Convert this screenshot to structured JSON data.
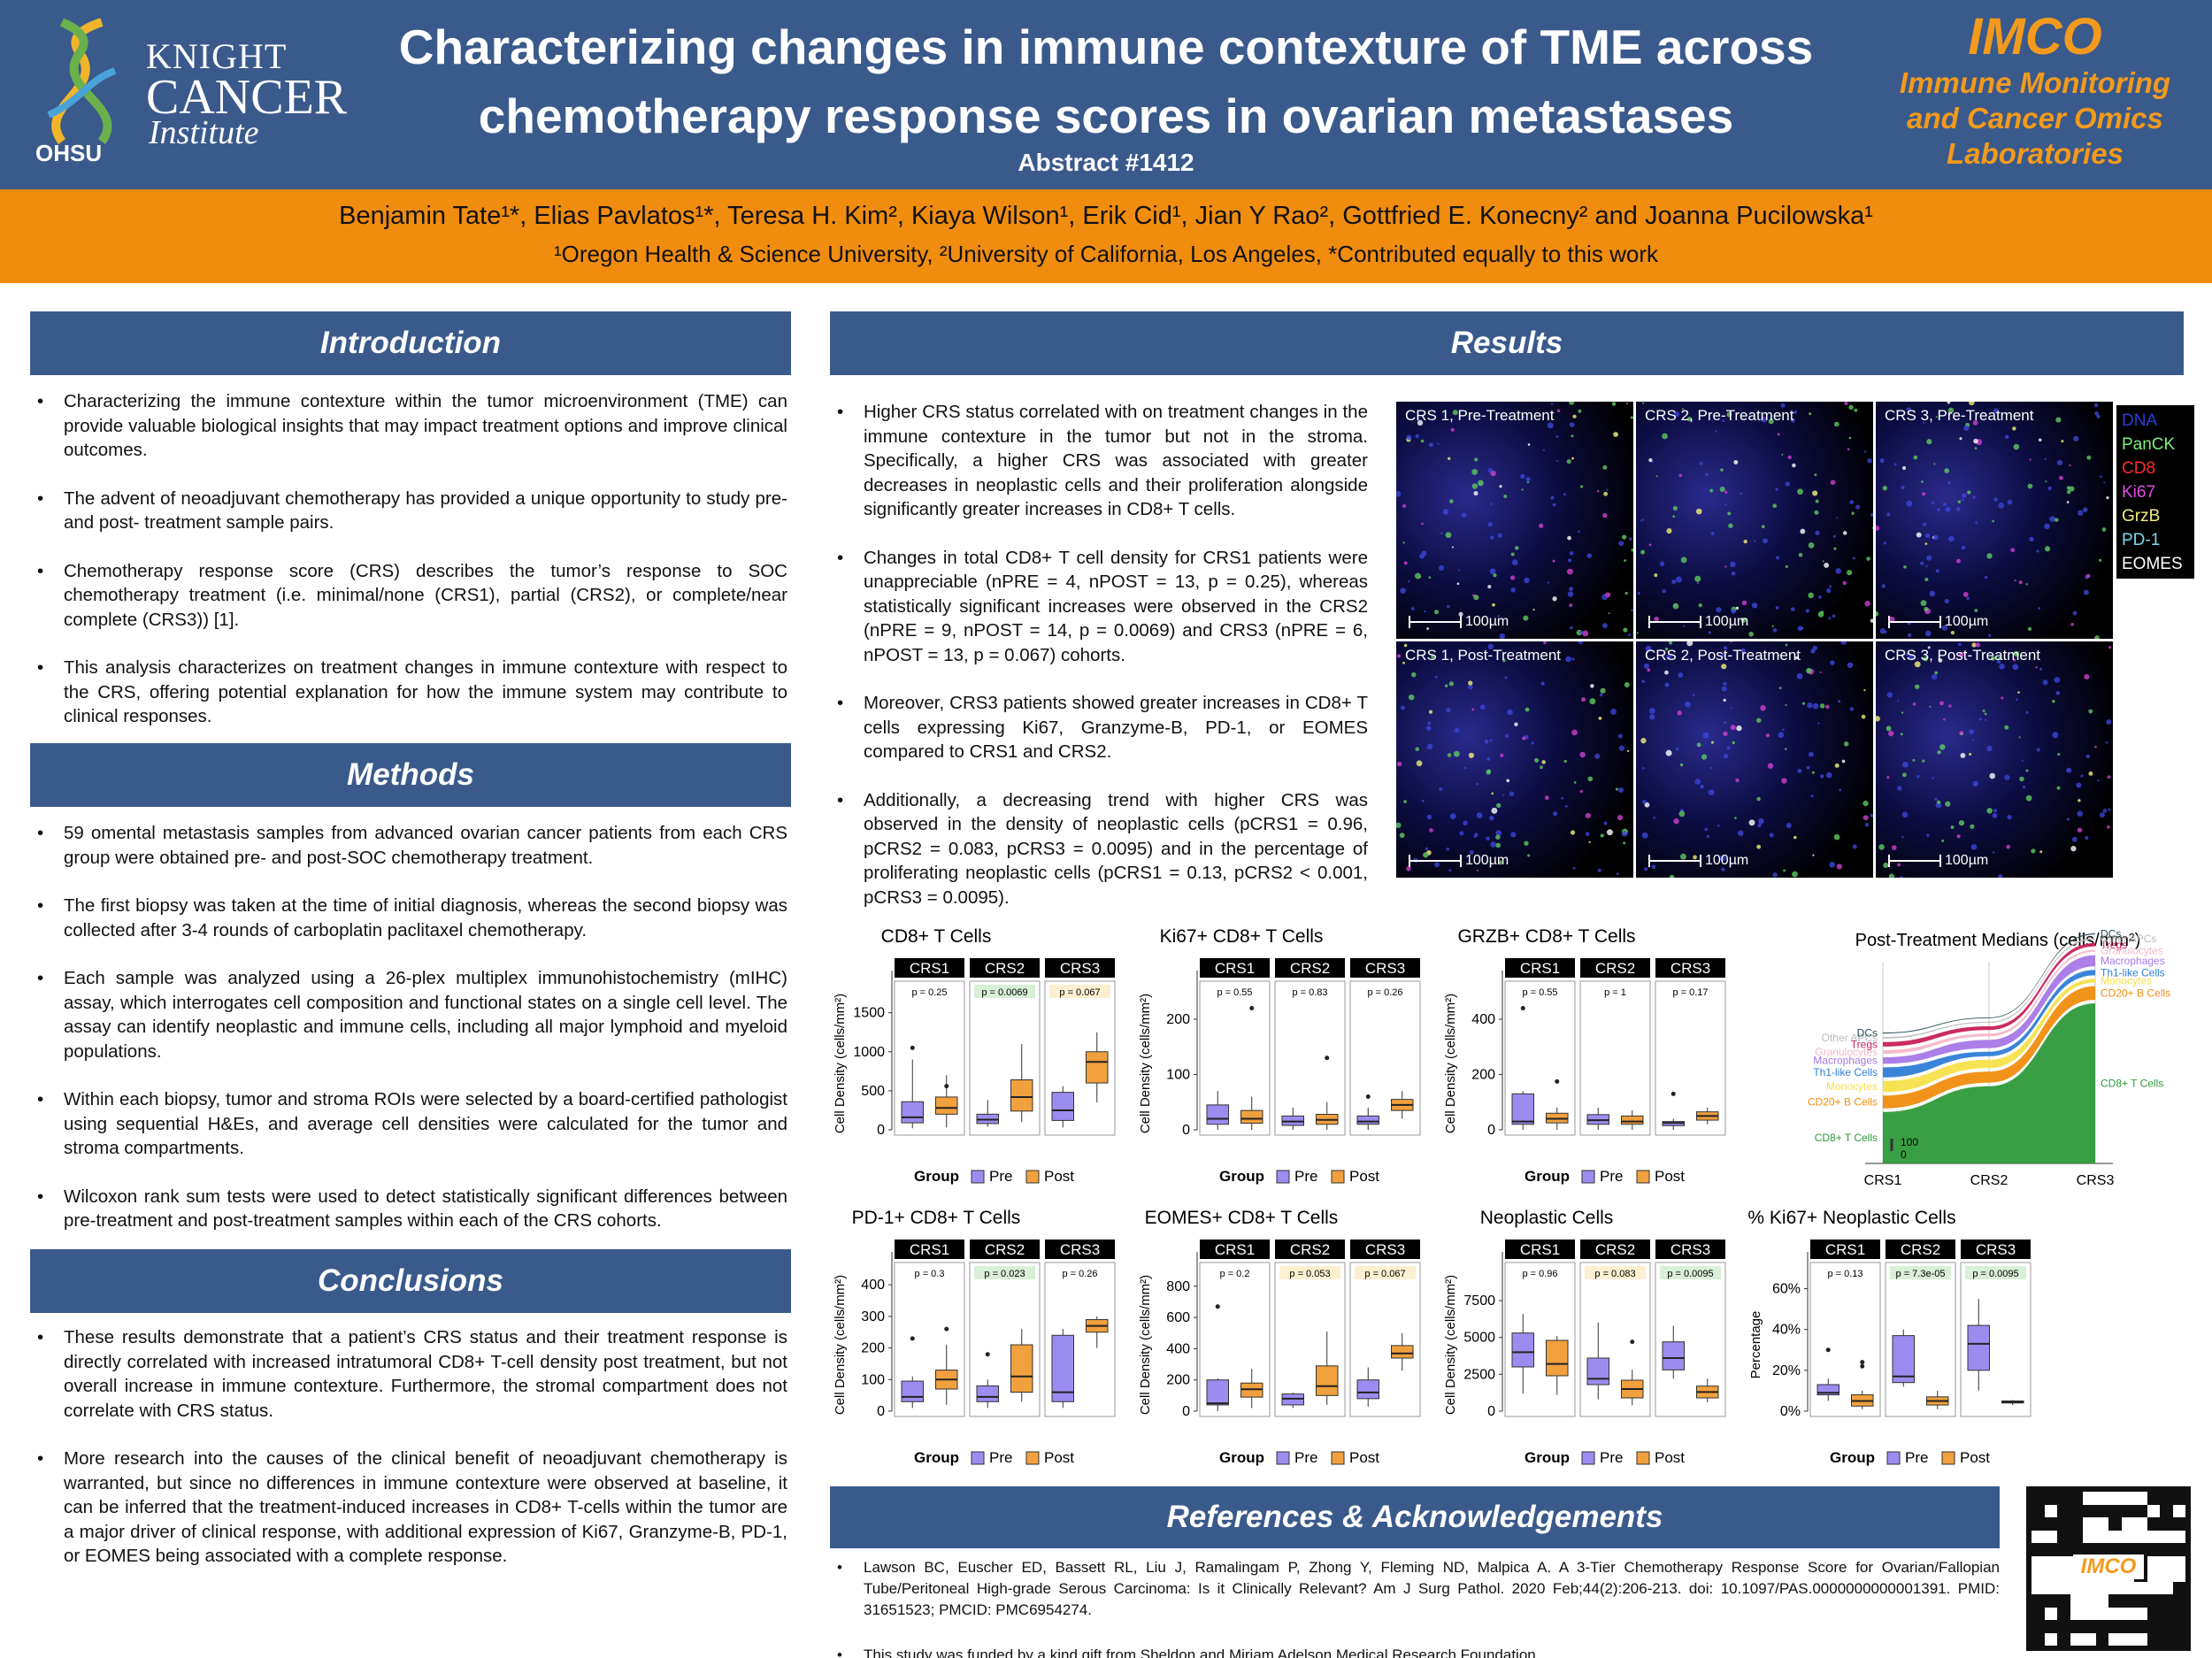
{
  "header": {
    "title_line1": "Characterizing changes in immune contexture of TME across",
    "title_line2": "chemotherapy response scores in ovarian metastases",
    "abstract": "Abstract #1412",
    "logo_knight": "KNIGHT",
    "logo_cancer": "CANCER",
    "logo_institute": "Institute",
    "logo_ohsu": "OHSU",
    "imco_title": "IMCO",
    "imco_l1": "Immune Monitoring",
    "imco_l2": "and Cancer Omics",
    "imco_l3": "Laboratories"
  },
  "authors": "Benjamin Tate¹*, Elias Pavlatos¹*, Teresa H. Kim², Kiaya Wilson¹, Erik Cid¹, Jian Y Rao², Gottfried E. Konecny² and Joanna Pucilowska¹",
  "affiliations": "¹Oregon Health & Science University, ²University of California, Los Angeles, *Contributed equally to this work",
  "sections": {
    "introduction": {
      "title": "Introduction",
      "bullets": [
        "Characterizing the immune contexture within the tumor microenvironment (TME) can provide valuable biological insights that may impact treatment options and improve clinical outcomes.",
        "The advent of neoadjuvant chemotherapy has provided a unique opportunity to study pre- and post- treatment sample pairs.",
        "Chemotherapy response score (CRS) describes the tumor’s response to SOC chemotherapy treatment (i.e. minimal/none (CRS1), partial (CRS2), or complete/near complete (CRS3)) [1].",
        "This analysis characterizes on treatment changes in immune contexture with respect to the CRS, offering potential explanation for how the immune system may contribute to clinical responses."
      ]
    },
    "methods": {
      "title": "Methods",
      "bullets": [
        "59 omental metastasis samples from advanced ovarian cancer patients from each CRS group were obtained pre- and post-SOC chemotherapy treatment.",
        "The first biopsy was taken at the time of initial diagnosis, whereas the second biopsy was collected after 3-4 rounds of carboplatin paclitaxel chemotherapy.",
        "Each sample was analyzed using a 26-plex multiplex immunohistochemistry (mIHC) assay, which interrogates cell composition and functional states on a single cell level. The assay can identify neoplastic and immune cells, including all major lymphoid and myeloid populations.",
        "Within each biopsy, tumor and stroma ROIs were selected by a board-certified pathologist using sequential H&Es, and average cell densities were calculated for the tumor and stroma compartments.",
        "Wilcoxon rank sum tests were used to detect statistically significant differences between pre-treatment and post-treatment samples within each of the CRS cohorts."
      ]
    },
    "conclusions": {
      "title": "Conclusions",
      "bullets": [
        "These results demonstrate that a patient’s CRS status and their treatment response is directly correlated with increased intratumoral CD8+ T-cell density post treatment, but not overall increase in immune contexture. Furthermore, the stromal compartment does not correlate with CRS status.",
        "More research into the causes of the clinical benefit of neoadjuvant chemotherapy is warranted, but since no differences in immune contexture were observed at baseline, it can be inferred that the treatment-induced increases in CD8+ T-cells within the tumor are a major driver of clinical response, with additional expression of Ki67, Granzyme-B, PD-1, or EOMES being associated with a complete response."
      ]
    },
    "results": {
      "title": "Results",
      "bullets": [
        "Higher CRS status correlated with on treatment changes in the immune contexture in the tumor but not in the stroma. Specifically, a higher CRS was associated with greater decreases in neoplastic cells and their proliferation alongside significantly greater increases in CD8+ T cells.",
        "Changes in total CD8+ T cell density for CRS1 patients were unappreciable (nPRE = 4, nPOST = 13, p = 0.25), whereas statistically significant increases were observed in the CRS2 (nPRE = 9, nPOST = 14, p = 0.0069) and CRS3 (nPRE = 6, nPOST = 13, p = 0.067) cohorts.",
        "Moreover, CRS3 patients showed greater increases in CD8+ T cells expressing Ki67, Granzyme-B, PD-1, or EOMES compared to CRS1 and CRS2.",
        "Additionally, a decreasing trend with higher CRS was observed in the density of neoplastic cells (pCRS1 = 0.96, pCRS2 = 0.083, pCRS3 = 0.0095) and in the percentage of proliferating neoplastic cells (pCRS1 = 0.13, pCRS2 < 0.001, pCRS3 = 0.0095)."
      ]
    },
    "references": {
      "title": "References & Acknowledgements",
      "items": [
        "Lawson BC, Euscher ED, Bassett RL, Liu J, Ramalingam P, Zhong Y, Fleming ND, Malpica A. A 3-Tier Chemotherapy Response Score for Ovarian/Fallopian Tube/Peritoneal High-grade Serous Carcinoma: Is it Clinically Relevant? Am J Surg Pathol. 2020 Feb;44(2):206-213. doi: 10.1097/PAS.0000000000001391. PMID: 31651523; PMCID: PMC6954274.",
        "This study was funded by a kind gift from Sheldon and Miriam Adelson Medical Research Foundation"
      ]
    }
  },
  "micrographs": {
    "panels": [
      "CRS 1, Pre-Treatment",
      "CRS 2, Pre-Treatment",
      "CRS 3, Pre-Treatment",
      "CRS 1, Post-Treatment",
      "CRS 2, Post-Treatment",
      "CRS 3, Post-Treatment"
    ],
    "scalebar": "100µm",
    "legend": [
      {
        "label": "DNA",
        "color": "#2a3fd8"
      },
      {
        "label": "PanCK",
        "color": "#7cf07c"
      },
      {
        "label": "CD8",
        "color": "#ff2b2b"
      },
      {
        "label": "Ki67",
        "color": "#e54be5"
      },
      {
        "label": "GrzB",
        "color": "#f0f07a"
      },
      {
        "label": "PD-1",
        "color": "#7ad8f0"
      },
      {
        "label": "EOMES",
        "color": "#ffffff"
      }
    ]
  },
  "qr_label": "IMCO",
  "colors": {
    "pre": "#9b8cf0",
    "post": "#f0a03c",
    "navy": "#3a5a8c",
    "orange": "#f08c0e"
  },
  "chart_data": [
    {
      "type": "box",
      "title": "CD8+ T Cells",
      "ylabel": "Cell Density (cells/mm²)",
      "ylim": [
        0,
        1700
      ],
      "yticks": [
        0,
        500,
        1000,
        1500
      ],
      "facets": [
        "CRS1",
        "CRS2",
        "CRS3"
      ],
      "pvalues": [
        "p = 0.25",
        "p = 0.0069",
        "p = 0.067"
      ],
      "pcolors": [
        "",
        "#d8efd8",
        "#fdf0d0"
      ],
      "boxes": [
        [
          [
            20,
            90,
            160,
            360,
            900
          ],
          [
            30,
            200,
            280,
            420,
            700
          ]
        ],
        [
          [
            40,
            80,
            130,
            200,
            380
          ],
          [
            100,
            240,
            420,
            640,
            1100
          ]
        ],
        [
          [
            30,
            120,
            250,
            480,
            560
          ],
          [
            350,
            600,
            870,
            1000,
            1250
          ]
        ]
      ],
      "outliers": [
        [
          [
            1050
          ],
          [
            560
          ]
        ],
        [
          [],
          []
        ],
        [
          [],
          []
        ]
      ],
      "legend": [
        "Group",
        "Pre",
        "Post"
      ]
    },
    {
      "type": "box",
      "title": "Ki67+ CD8+ T Cells",
      "ylabel": "Cell Density (cells/mm²)",
      "ylim": [
        0,
        240
      ],
      "yticks": [
        0,
        100,
        200
      ],
      "facets": [
        "CRS1",
        "CRS2",
        "CRS3"
      ],
      "pvalues": [
        "p = 0.55",
        "p = 0.83",
        "p = 0.26"
      ],
      "pcolors": [
        "",
        "",
        ""
      ],
      "boxes": [
        [
          [
            0,
            10,
            20,
            45,
            70
          ],
          [
            0,
            12,
            20,
            35,
            60
          ]
        ],
        [
          [
            0,
            8,
            15,
            25,
            40
          ],
          [
            0,
            10,
            18,
            28,
            50
          ]
        ],
        [
          [
            0,
            10,
            15,
            25,
            40
          ],
          [
            20,
            35,
            45,
            55,
            70
          ]
        ]
      ],
      "outliers": [
        [
          [],
          [
            220
          ]
        ],
        [
          [],
          [
            130
          ]
        ],
        [
          [
            60
          ],
          []
        ]
      ],
      "legend": [
        "Group",
        "Pre",
        "Post"
      ]
    },
    {
      "type": "box",
      "title": "GRZB+ CD8+ T Cells",
      "ylabel": "Cell Density (cells/mm²)",
      "ylim": [
        0,
        480
      ],
      "yticks": [
        0,
        200,
        400
      ],
      "facets": [
        "CRS1",
        "CRS2",
        "CRS3"
      ],
      "pvalues": [
        "p = 0.55",
        "p = 1",
        "p = 0.17"
      ],
      "pcolors": [
        "",
        "",
        ""
      ],
      "boxes": [
        [
          [
            0,
            20,
            30,
            130,
            140
          ],
          [
            0,
            25,
            40,
            60,
            80
          ]
        ],
        [
          [
            0,
            20,
            35,
            55,
            80
          ],
          [
            0,
            20,
            30,
            50,
            70
          ]
        ],
        [
          [
            0,
            15,
            25,
            30,
            40
          ],
          [
            20,
            35,
            50,
            65,
            80
          ]
        ]
      ],
      "outliers": [
        [
          [
            440
          ],
          [
            175
          ]
        ],
        [
          [],
          []
        ],
        [
          [
            130
          ],
          []
        ]
      ],
      "legend": [
        "Group",
        "Pre",
        "Post"
      ]
    },
    {
      "type": "box",
      "title": "PD-1+ CD8+ T Cells",
      "ylabel": "Cell Density (cells/mm²)",
      "ylim": [
        0,
        420
      ],
      "yticks": [
        0,
        100,
        200,
        300,
        400
      ],
      "facets": [
        "CRS1",
        "CRS2",
        "CRS3"
      ],
      "pvalues": [
        "p = 0.3",
        "p = 0.023",
        "p = 0.26"
      ],
      "pcolors": [
        "",
        "#d8efd8",
        ""
      ],
      "boxes": [
        [
          [
            10,
            30,
            45,
            95,
            110
          ],
          [
            20,
            70,
            100,
            130,
            210
          ]
        ],
        [
          [
            10,
            30,
            45,
            80,
            100
          ],
          [
            30,
            60,
            110,
            210,
            260
          ]
        ],
        [
          [
            10,
            30,
            60,
            240,
            260
          ],
          [
            200,
            250,
            270,
            290,
            300
          ]
        ]
      ],
      "outliers": [
        [
          [
            230
          ],
          [
            260
          ]
        ],
        [
          [
            180
          ],
          []
        ],
        [
          [],
          []
        ]
      ],
      "legend": [
        "Group",
        "Pre",
        "Post"
      ]
    },
    {
      "type": "box",
      "title": "EOMES+ CD8+ T Cells",
      "ylabel": "Cell Density (cells/mm²)",
      "ylim": [
        0,
        850
      ],
      "yticks": [
        0,
        200,
        400,
        600,
        800
      ],
      "facets": [
        "CRS1",
        "CRS2",
        "CRS3"
      ],
      "pvalues": [
        "p = 0.2",
        "p = 0.053",
        "p = 0.067"
      ],
      "pcolors": [
        "",
        "#fdf0d0",
        "#fdf0d0"
      ],
      "boxes": [
        [
          [
            0,
            40,
            50,
            200,
            210
          ],
          [
            20,
            90,
            140,
            180,
            270
          ]
        ],
        [
          [
            20,
            40,
            80,
            110,
            120
          ],
          [
            40,
            100,
            160,
            290,
            510
          ]
        ],
        [
          [
            30,
            80,
            120,
            200,
            280
          ],
          [
            260,
            340,
            370,
            420,
            500
          ]
        ]
      ],
      "outliers": [
        [
          [
            670
          ],
          []
        ],
        [
          [],
          []
        ],
        [
          [],
          []
        ]
      ],
      "legend": [
        "Group",
        "Pre",
        "Post"
      ]
    },
    {
      "type": "box",
      "title": "Neoplastic Cells",
      "ylabel": "Cell Density (cells/mm²)",
      "ylim": [
        0,
        9000
      ],
      "yticks": [
        0,
        2500,
        5000,
        7500
      ],
      "facets": [
        "CRS1",
        "CRS2",
        "CRS3"
      ],
      "pvalues": [
        "p = 0.96",
        "p = 0.083",
        "p = 0.0095"
      ],
      "pcolors": [
        "",
        "#fdf0d0",
        "#d8efd8"
      ],
      "boxes": [
        [
          [
            1200,
            3000,
            4000,
            5300,
            6600
          ],
          [
            1100,
            2400,
            3200,
            4800,
            5100
          ]
        ],
        [
          [
            800,
            1800,
            2200,
            3600,
            6000
          ],
          [
            400,
            900,
            1500,
            2100,
            2800
          ]
        ],
        [
          [
            2200,
            2800,
            3600,
            4700,
            5800
          ],
          [
            600,
            900,
            1300,
            1700,
            2200
          ]
        ]
      ],
      "outliers": [
        [
          [],
          []
        ],
        [
          [],
          [
            4700
          ]
        ],
        [
          [],
          []
        ]
      ],
      "legend": [
        "Group",
        "Pre",
        "Post"
      ]
    },
    {
      "type": "box",
      "title": "% Ki67+ Neoplastic Cells",
      "ylabel": "Percentage",
      "ylim": [
        0,
        0.65
      ],
      "yticks": [
        0,
        0.2,
        0.4,
        0.6
      ],
      "ytickLabels": [
        "0%",
        "20%",
        "40%",
        "60%"
      ],
      "facets": [
        "CRS1",
        "CRS2",
        "CRS3"
      ],
      "pvalues": [
        "p = 0.13",
        "p = 7.3e-05",
        "p = 0.0095"
      ],
      "pcolors": [
        "",
        "#d8efd8",
        "#d8efd8"
      ],
      "boxes": [
        [
          [
            0.05,
            0.08,
            0.09,
            0.13,
            0.16
          ],
          [
            0.01,
            0.025,
            0.05,
            0.08,
            0.1
          ]
        ],
        [
          [
            0.12,
            0.14,
            0.17,
            0.37,
            0.4
          ],
          [
            0.01,
            0.03,
            0.05,
            0.07,
            0.1
          ]
        ],
        [
          [
            0.1,
            0.2,
            0.33,
            0.42,
            0.55
          ],
          [
            0.03,
            0.04,
            0.045,
            0.05,
            0.055
          ]
        ]
      ],
      "outliers": [
        [
          [
            0.3
          ],
          [
            0.22,
            0.24
          ]
        ],
        [
          [],
          []
        ],
        [
          [],
          []
        ]
      ],
      "legend": [
        "Group",
        "Pre",
        "Post"
      ]
    },
    {
      "type": "area",
      "title": "Post-Treatment Medians (cells/mm²)",
      "x": [
        "CRS1",
        "CRS2",
        "CRS3"
      ],
      "left_labels": [
        "CD8+ T Cells",
        "CD20+ B Cells",
        "Monocytes",
        "Th1-like Cells",
        "Macrophages",
        "Granulocytes",
        "Tregs",
        "Other APCs",
        "DCs"
      ],
      "right_labels": [
        "CD8+ T Cells",
        "CD20+ B Cells",
        "Macrophages",
        "Th1-like Cells",
        "Monocytes",
        "Tregs",
        "Granulocytes",
        "Other APCs",
        "DCs"
      ],
      "series": [
        {
          "name": "CD8+ T Cells",
          "color": "#2e9a3a",
          "values": [
            280,
            420,
            870
          ]
        },
        {
          "name": "CD20+ B Cells",
          "color": "#f08c0e",
          "values": [
            70,
            60,
            75
          ]
        },
        {
          "name": "Monocytes",
          "color": "#f7e04a",
          "values": [
            60,
            45,
            20
          ]
        },
        {
          "name": "Th1-like Cells",
          "color": "#2f7dd6",
          "values": [
            55,
            25,
            30
          ]
        },
        {
          "name": "Macrophages",
          "color": "#a678e6",
          "values": [
            35,
            45,
            60
          ]
        },
        {
          "name": "Granulocytes",
          "color": "#f4b8c8",
          "values": [
            20,
            15,
            10
          ]
        },
        {
          "name": "Tregs",
          "color": "#c8205a",
          "values": [
            25,
            20,
            18
          ]
        },
        {
          "name": "Other APCs",
          "color": "#bbbbbb",
          "values": [
            8,
            6,
            8
          ]
        },
        {
          "name": "DCs",
          "color": "#264d52",
          "values": [
            5,
            4,
            6
          ]
        }
      ],
      "scale_label": "100",
      "scale_zero": "0"
    }
  ]
}
